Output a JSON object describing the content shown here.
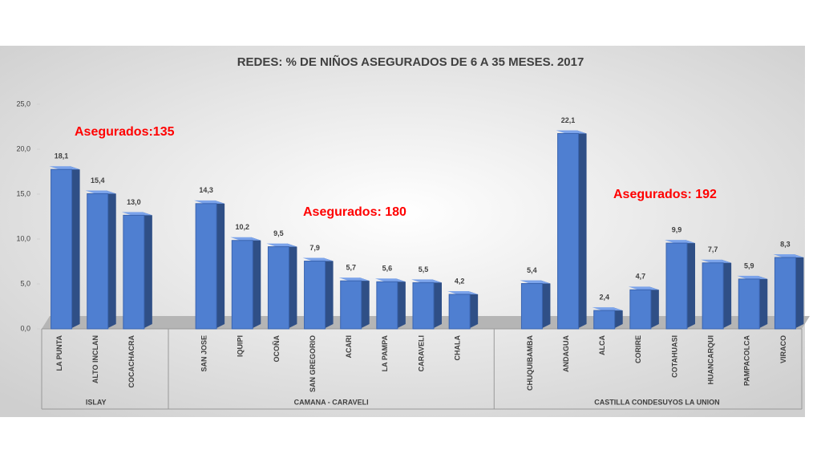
{
  "chart_data": {
    "type": "bar",
    "title": "REDES: % DE NIÑOS ASEGURADOS DE  6  A 35 MESES. 2017",
    "color": "#4f7fd1",
    "ylim": [
      0,
      25
    ],
    "yticks": [
      {
        "value": 0,
        "label": "0,0"
      },
      {
        "value": 5,
        "label": "5,0"
      },
      {
        "value": 10,
        "label": "10,0"
      },
      {
        "value": 15,
        "label": "15,0"
      },
      {
        "value": 20,
        "label": "20,0"
      },
      {
        "value": 25,
        "label": "25,0"
      }
    ],
    "groups": [
      {
        "name": "ISLAY",
        "categories": [
          "LA PUNTA",
          "ALTO INCLAN",
          "COCACHACRA"
        ],
        "values": [
          18.1,
          15.4,
          13.0
        ],
        "value_labels": [
          "18,1",
          "15,4",
          "13,0"
        ]
      },
      {
        "name": "CAMANA - CARAVELI",
        "categories": [
          "SAN JOSE",
          "IQUIPI",
          "OCOÑA",
          "SAN GREGORIO",
          "ACARI",
          "LA PAMPA",
          "CARAVELI",
          "CHALA"
        ],
        "values": [
          14.3,
          10.2,
          9.5,
          7.9,
          5.7,
          5.6,
          5.5,
          4.2
        ],
        "value_labels": [
          "14,3",
          "10,2",
          "9,5",
          "7,9",
          "5,7",
          "5,6",
          "5,5",
          "4,2"
        ]
      },
      {
        "name": "CASTILLA CONDESUYOS LA UNION",
        "categories": [
          "CHUQUIBAMBA",
          "ANDAGUA",
          "ALCA",
          "CORIRE",
          "COTAHUASI",
          "HUANCARQUI",
          "PAMPACOLCA",
          "VIRACO"
        ],
        "values": [
          5.4,
          22.1,
          2.4,
          4.7,
          9.9,
          7.7,
          5.9,
          8.3
        ],
        "value_labels": [
          "5,4",
          "22,1",
          "2,4",
          "4,7",
          "9,9",
          "7,7",
          "5,9",
          "8,3"
        ]
      }
    ],
    "annotations": [
      "Asegurados:135",
      "Asegurados: 180",
      "Asegurados: 192"
    ]
  }
}
